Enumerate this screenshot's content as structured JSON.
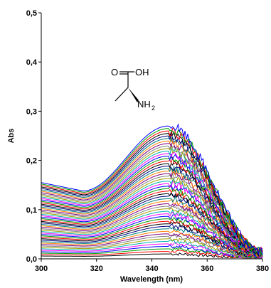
{
  "chart_data": {
    "type": "line",
    "title": "",
    "xlabel": "Wavelength (nm)",
    "ylabel": "Abs",
    "xlim": [
      300,
      380
    ],
    "ylim": [
      0.0,
      0.5
    ],
    "x_ticks": [
      "300",
      "320",
      "340",
      "360",
      "380"
    ],
    "y_ticks": [
      "0,0",
      "0,1",
      "0,2",
      "0,3",
      "0,4",
      "0,5"
    ],
    "grid": false,
    "legend": "none",
    "spectra_count": 52,
    "peak_wavelength_nm": 346,
    "max_absorbance_at_peak": 0.27,
    "min_absorbance_at_peak": 0.01,
    "max_absorbance_at_300nm": 0.155,
    "min_absorbance_at_300nm": 0.005,
    "max_absorbance_at_315nm": 0.138,
    "max_absorbance_at_380nm": 0.015,
    "max_absorbance_at_364nm": 0.2,
    "series_colors": [
      "#000000",
      "#ff0000",
      "#00a000",
      "#0000ff",
      "#ff00ff",
      "#00b0b0",
      "#a0a000",
      "#808080",
      "#800080",
      "#ff8000",
      "#008080",
      "#000080"
    ]
  },
  "annotation": {
    "molecule": "L-alanine",
    "label_carbonyl_o": "O",
    "label_hydroxyl": "OH",
    "label_amine": "NH",
    "label_amine_sub": "2"
  }
}
